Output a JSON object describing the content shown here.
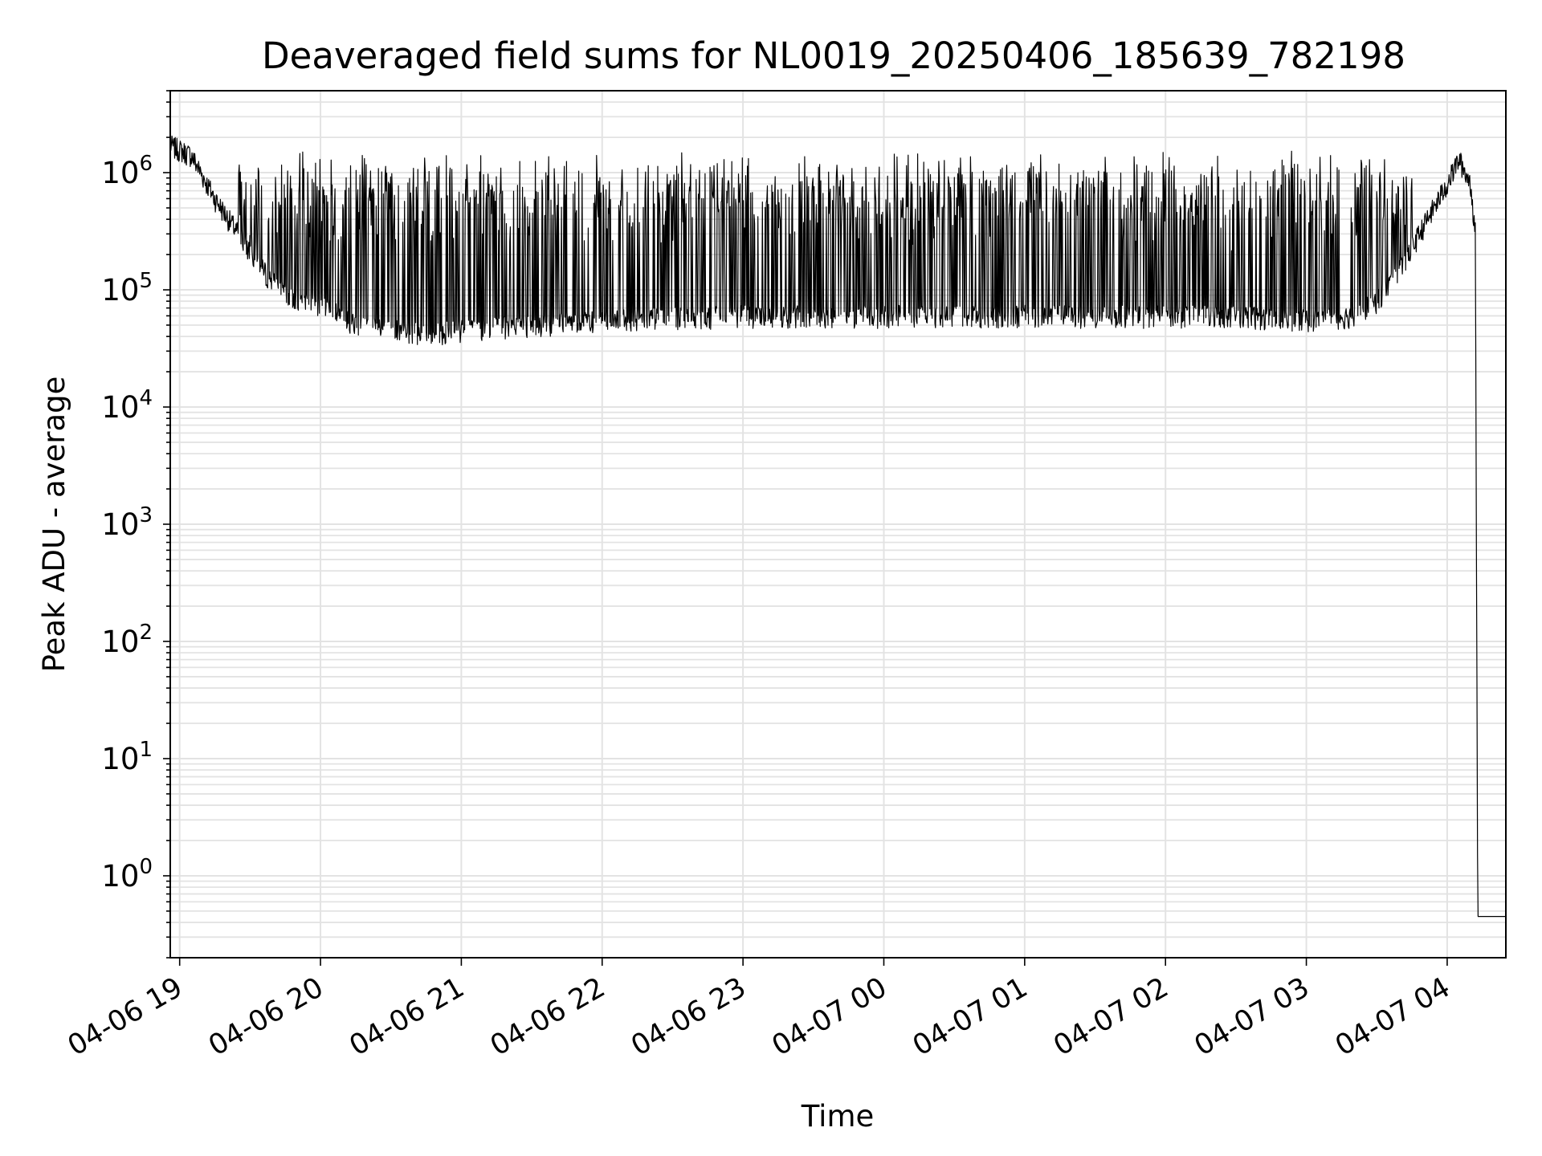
{
  "chart_data": {
    "type": "line",
    "title": "Deaveraged field sums for NL0019_20250406_185639_782198",
    "xlabel": "Time",
    "ylabel": "Peak ADU - average",
    "yscale": "log",
    "grid": true,
    "ylim": [
      0.2,
      5000000
    ],
    "xlim": [
      "2025-04-06 18:56",
      "2025-04-07 04:25"
    ],
    "x_ticks": [
      {
        "time": "2025-04-06 19:00",
        "label": "04-06 19"
      },
      {
        "time": "2025-04-06 20:00",
        "label": "04-06 20"
      },
      {
        "time": "2025-04-06 21:00",
        "label": "04-06 21"
      },
      {
        "time": "2025-04-06 22:00",
        "label": "04-06 22"
      },
      {
        "time": "2025-04-06 23:00",
        "label": "04-06 23"
      },
      {
        "time": "2025-04-07 00:00",
        "label": "04-07 00"
      },
      {
        "time": "2025-04-07 01:00",
        "label": "04-07 01"
      },
      {
        "time": "2025-04-07 02:00",
        "label": "04-07 02"
      },
      {
        "time": "2025-04-07 03:00",
        "label": "04-07 03"
      },
      {
        "time": "2025-04-07 04:00",
        "label": "04-07 04"
      }
    ],
    "y_ticks": [
      {
        "value": 1,
        "base": "10",
        "exp": "0"
      },
      {
        "value": 10,
        "base": "10",
        "exp": "1"
      },
      {
        "value": 100,
        "base": "10",
        "exp": "2"
      },
      {
        "value": 1000,
        "base": "10",
        "exp": "3"
      },
      {
        "value": 10000,
        "base": "10",
        "exp": "4"
      },
      {
        "value": 100000,
        "base": "10",
        "exp": "5"
      },
      {
        "value": 1000000,
        "base": "10",
        "exp": "6"
      }
    ],
    "series": [
      {
        "color": "#000000",
        "baseline_points": [
          {
            "x": "2025-04-06 18:56",
            "y": 1700000
          },
          {
            "x": "2025-04-06 19:05",
            "y": 1400000
          },
          {
            "x": "2025-04-06 19:15",
            "y": 600000
          },
          {
            "x": "2025-04-06 19:25",
            "y": 300000
          },
          {
            "x": "2025-04-06 19:35",
            "y": 150000
          },
          {
            "x": "2025-04-06 19:45",
            "y": 90000
          },
          {
            "x": "2025-04-06 20:00",
            "y": 75000
          },
          {
            "x": "2025-04-06 20:15",
            "y": 50000
          },
          {
            "x": "2025-04-06 20:30",
            "y": 45000
          },
          {
            "x": "2025-04-06 20:45",
            "y": 42000
          },
          {
            "x": "2025-04-06 21:00",
            "y": 45000
          },
          {
            "x": "2025-04-06 21:30",
            "y": 50000
          },
          {
            "x": "2025-04-06 22:00",
            "y": 55000
          },
          {
            "x": "2025-04-06 23:00",
            "y": 60000
          },
          {
            "x": "2025-04-07 00:00",
            "y": 60000
          },
          {
            "x": "2025-04-07 01:00",
            "y": 60000
          },
          {
            "x": "2025-04-07 02:00",
            "y": 60000
          },
          {
            "x": "2025-04-07 02:30",
            "y": 60000
          },
          {
            "x": "2025-04-07 03:00",
            "y": 55000
          },
          {
            "x": "2025-04-07 03:20",
            "y": 60000
          },
          {
            "x": "2025-04-07 03:30",
            "y": 80000
          },
          {
            "x": "2025-04-07 03:40",
            "y": 150000
          },
          {
            "x": "2025-04-07 03:50",
            "y": 350000
          },
          {
            "x": "2025-04-07 04:00",
            "y": 800000
          },
          {
            "x": "2025-04-07 04:05",
            "y": 1300000
          },
          {
            "x": "2025-04-07 04:10",
            "y": 800000
          },
          {
            "x": "2025-04-07 04:12",
            "y": 300000
          },
          {
            "x": "2025-04-07 04:13",
            "y": 0.45
          },
          {
            "x": "2025-04-07 04:25",
            "y": 0.45
          }
        ],
        "spike_peak_range": [
          600000,
          1600000
        ],
        "spike_time_range": [
          "2025-04-06 19:25",
          "2025-04-07 03:45"
        ]
      }
    ]
  }
}
